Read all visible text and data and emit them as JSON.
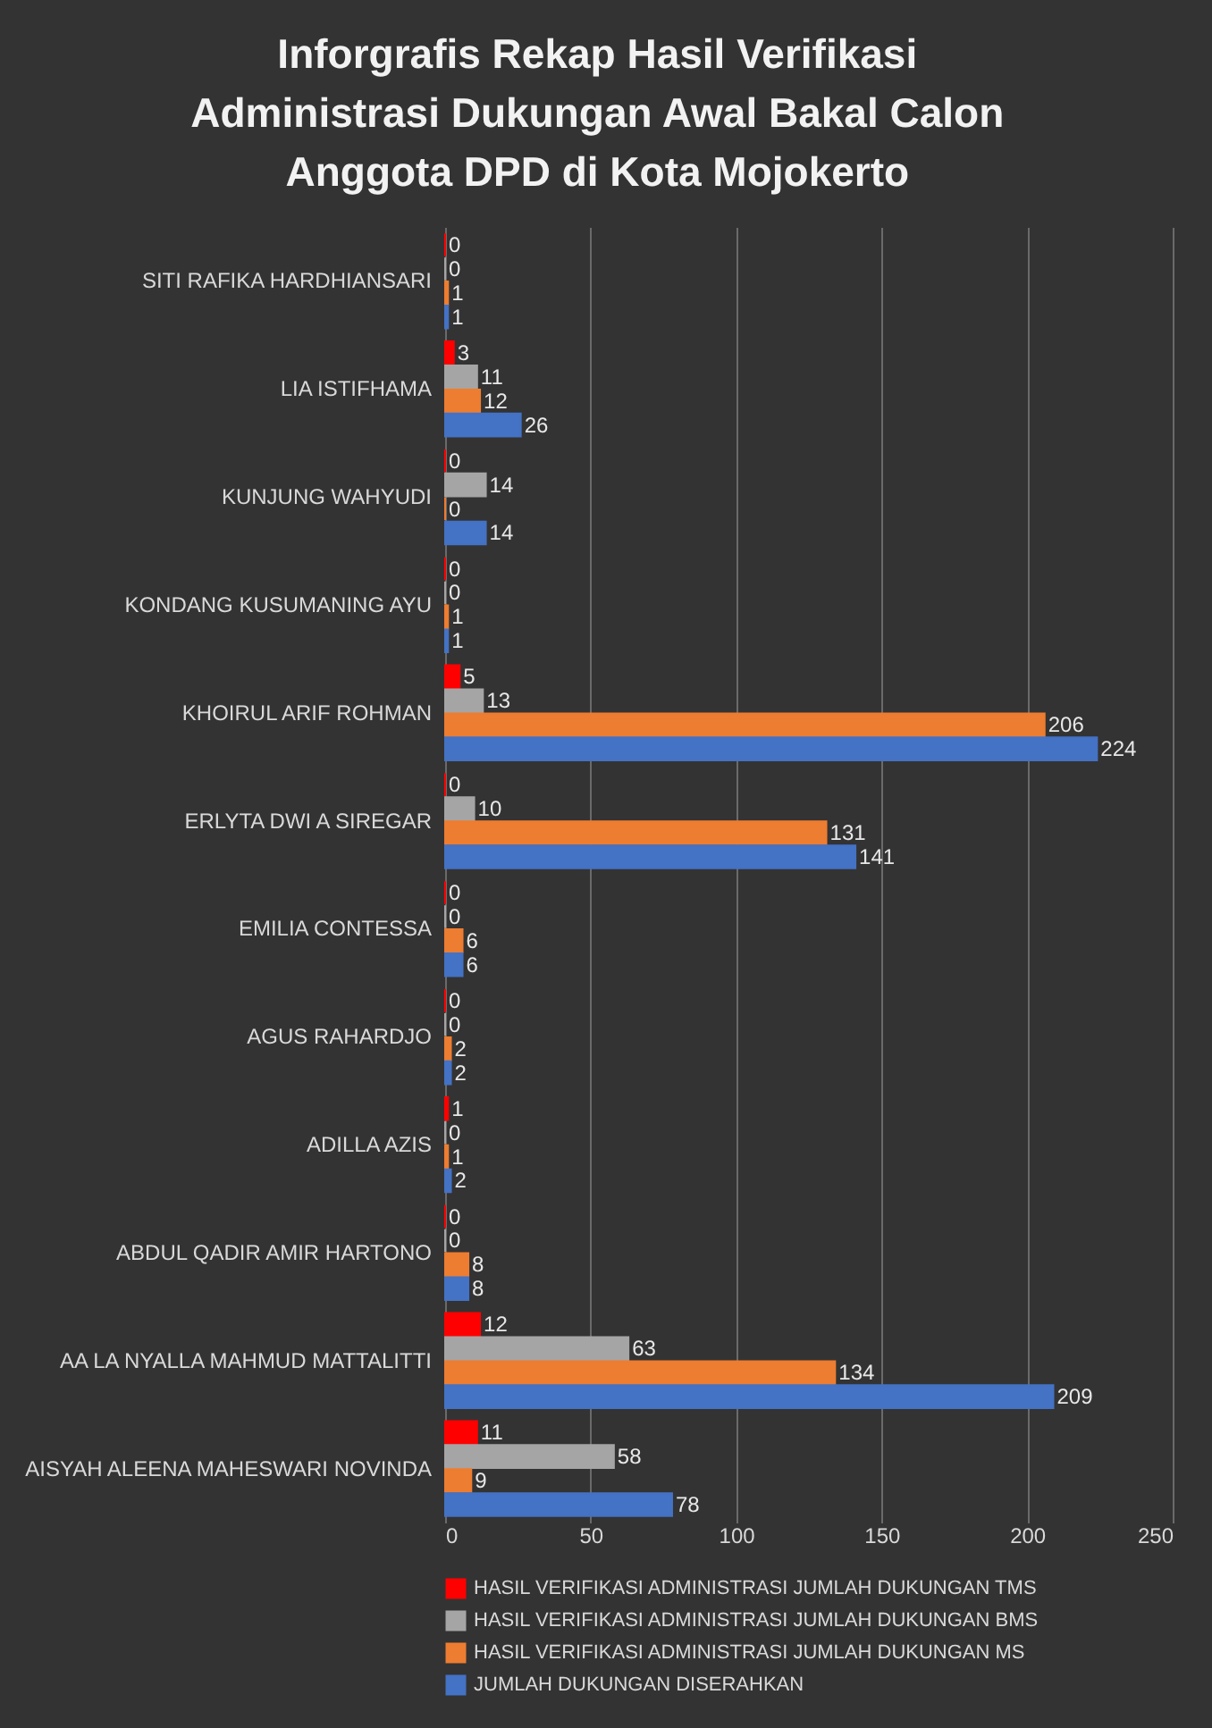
{
  "chart_data": {
    "type": "bar",
    "orientation": "horizontal",
    "title": "Inforgrafis Rekap Hasil Verifikasi\nAdministrasi Dukungan Awal Bakal Calon\nAnggota DPD di Kota Mojokerto",
    "categories": [
      "SITI RAFIKA HARDHIANSARI",
      "LIA ISTIFHAMA",
      "KUNJUNG WAHYUDI",
      "KONDANG KUSUMANING AYU",
      "KHOIRUL ARIF ROHMAN",
      "ERLYTA DWI A SIREGAR",
      "EMILIA CONTESSA",
      "AGUS RAHARDJO",
      "ADILLA AZIS",
      "ABDUL QADIR AMIR HARTONO",
      "AA LA NYALLA MAHMUD MATTALITTI",
      "AISYAH ALEENA MAHESWARI NOVINDA"
    ],
    "series": [
      {
        "name": "HASIL VERIFIKASI ADMINISTRASI JUMLAH DUKUNGAN TMS",
        "color": "#ff0000",
        "values": [
          0,
          3,
          0,
          0,
          5,
          0,
          0,
          0,
          1,
          0,
          12,
          11
        ]
      },
      {
        "name": "HASIL VERIFIKASI ADMINISTRASI JUMLAH DUKUNGAN BMS",
        "color": "#a5a5a5",
        "values": [
          0,
          11,
          14,
          0,
          13,
          10,
          0,
          0,
          0,
          0,
          63,
          58
        ]
      },
      {
        "name": "HASIL VERIFIKASI ADMINISTRASI JUMLAH DUKUNGAN MS",
        "color": "#ed7d31",
        "values": [
          1,
          12,
          0,
          1,
          206,
          131,
          6,
          2,
          1,
          8,
          134,
          9
        ]
      },
      {
        "name": "JUMLAH DUKUNGAN DISERAHKAN",
        "color": "#4472c4",
        "values": [
          1,
          26,
          14,
          1,
          224,
          141,
          6,
          2,
          2,
          8,
          209,
          78
        ]
      }
    ],
    "xlim": [
      0,
      250
    ],
    "xticks": [
      0,
      50,
      100,
      150,
      200,
      250
    ],
    "grid": "x",
    "legend": "bottom",
    "data_labels": true
  }
}
